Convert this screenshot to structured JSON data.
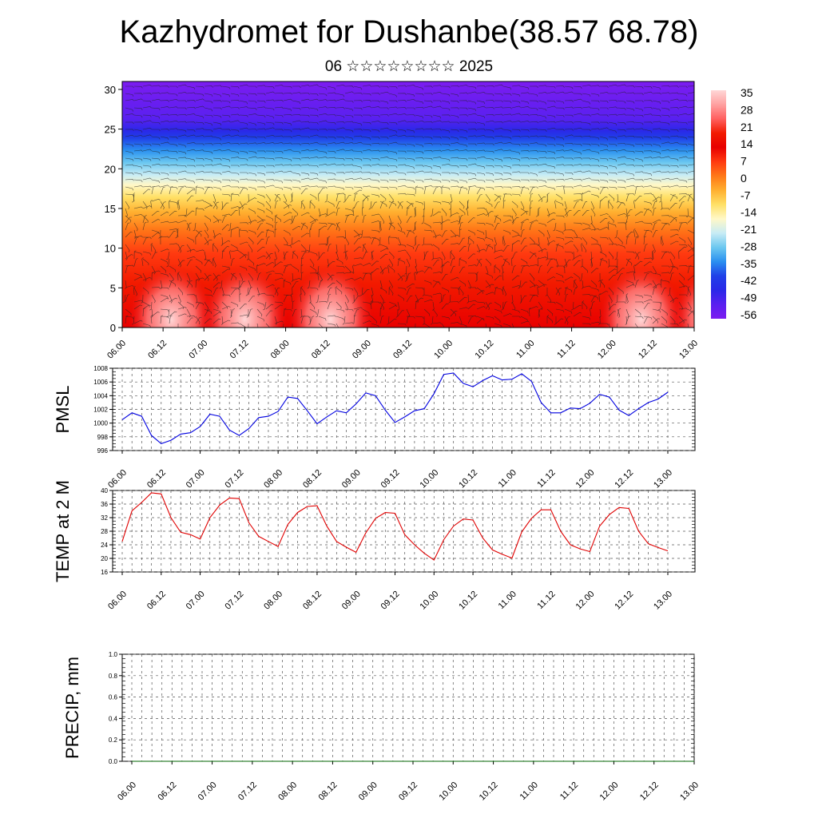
{
  "header": {
    "title": "Kazhydromet for Dushanbe(38.57 68.78)",
    "subtitle": "06 ☆☆☆☆☆☆☆☆ 2025"
  },
  "colors": {
    "temp_line": "#e00000",
    "pmsl_line": "#0000e0",
    "precip_line": "#006400",
    "palette": [
      "#7c1cf0",
      "#2828f0",
      "#1e8cf0",
      "#80d8f5",
      "#ffffd0",
      "#ffe066",
      "#ffa020",
      "#ff5a10",
      "#e80000",
      "#ffb0b0"
    ]
  },
  "chart_data": [
    {
      "id": "upper-cross-section",
      "type": "heatmap",
      "description": "height-time temperature cross-section with wind barbs",
      "x_ticks": [
        "06.00",
        "06.12",
        "07.00",
        "07.12",
        "08.00",
        "08.12",
        "09.00",
        "09.12",
        "10.00",
        "10.12",
        "11.00",
        "11.12",
        "12.00",
        "12.12",
        "13.00"
      ],
      "y_ticks": [
        0,
        5,
        10,
        15,
        20,
        25,
        30
      ],
      "ylim": [
        0,
        31
      ],
      "colorbar_labels": [
        "35",
        "28",
        "21",
        "14",
        "7",
        "0",
        "-7",
        "-14",
        "-21",
        "-28",
        "-35",
        "-42",
        "-49",
        "-56"
      ]
    },
    {
      "id": "pmsl",
      "type": "line",
      "ylabel": "PMSL",
      "ylim": [
        996,
        1008
      ],
      "y_ticks": [
        996,
        998,
        1000,
        1002,
        1004,
        1006,
        1008
      ],
      "x_ticks": [
        "06.00",
        "06.12",
        "07.00",
        "07.12",
        "08.00",
        "08.12",
        "09.00",
        "09.12",
        "10.00",
        "10.12",
        "11.00",
        "11.12",
        "12.00",
        "12.12",
        "13.00"
      ],
      "values": [
        1000.5,
        1001.5,
        1001.0,
        998.2,
        997.0,
        997.5,
        998.4,
        998.6,
        999.5,
        1001.3,
        1001.0,
        999.0,
        998.2,
        999.2,
        1000.8,
        1001.0,
        1001.7,
        1003.8,
        1003.6,
        1001.8,
        999.9,
        1000.9,
        1001.8,
        1001.5,
        1002.8,
        1004.4,
        1004.0,
        1001.9,
        1000.1,
        1000.9,
        1001.8,
        1002.1,
        1004.3,
        1007.1,
        1007.3,
        1005.8,
        1005.3,
        1006.2,
        1006.9,
        1006.3,
        1006.4,
        1007.2,
        1006.1,
        1003.0,
        1001.5,
        1001.5,
        1002.2,
        1002.1,
        1002.9,
        1004.2,
        1003.8,
        1001.9,
        1001.1,
        1002.1,
        1003.0,
        1003.5,
        1004.5
      ]
    },
    {
      "id": "temp2m",
      "type": "line",
      "ylabel": "TEMP at 2 M",
      "ylim": [
        16,
        40
      ],
      "y_ticks": [
        16,
        20,
        24,
        28,
        32,
        36,
        40
      ],
      "x_ticks": [
        "06.00",
        "06.12",
        "07.00",
        "07.12",
        "08.00",
        "08.12",
        "09.00",
        "09.12",
        "10.00",
        "10.12",
        "11.00",
        "11.12",
        "12.00",
        "12.12",
        "13.00"
      ],
      "values": [
        25.0,
        34.0,
        36.5,
        39.3,
        39.0,
        32.0,
        27.7,
        27.0,
        25.7,
        32.0,
        35.7,
        37.8,
        37.6,
        30.5,
        26.5,
        25.0,
        23.5,
        30.0,
        33.5,
        35.3,
        35.5,
        29.5,
        25.0,
        23.3,
        21.8,
        27.5,
        31.8,
        33.5,
        33.3,
        27.0,
        24.0,
        21.5,
        19.5,
        25.5,
        29.5,
        31.6,
        31.3,
        26.0,
        22.5,
        21.2,
        20.1,
        27.8,
        31.8,
        34.3,
        34.3,
        28.0,
        24.0,
        22.8,
        22.0,
        29.5,
        32.9,
        35.0,
        34.7,
        28.0,
        24.3,
        23.2,
        22.2
      ]
    },
    {
      "id": "precip",
      "type": "line",
      "ylabel": "PRECIP, mm",
      "ylim": [
        0.0,
        1.0
      ],
      "y_ticks": [
        "0.0",
        "0.2",
        "0.4",
        "0.6",
        "0.8",
        "1.0"
      ],
      "x_ticks": [
        "06.00",
        "06.12",
        "07.00",
        "07.12",
        "08.00",
        "08.12",
        "09.00",
        "09.12",
        "10.00",
        "10.12",
        "11.00",
        "11.12",
        "12.00",
        "12.12",
        "13.00"
      ],
      "values": [
        0,
        0,
        0,
        0,
        0,
        0,
        0,
        0,
        0,
        0,
        0,
        0,
        0,
        0,
        0,
        0,
        0,
        0,
        0,
        0,
        0,
        0,
        0,
        0,
        0,
        0,
        0,
        0,
        0,
        0,
        0,
        0,
        0,
        0,
        0,
        0,
        0,
        0,
        0,
        0,
        0,
        0,
        0,
        0,
        0,
        0,
        0,
        0,
        0,
        0,
        0,
        0,
        0,
        0,
        0,
        0,
        0
      ]
    }
  ]
}
